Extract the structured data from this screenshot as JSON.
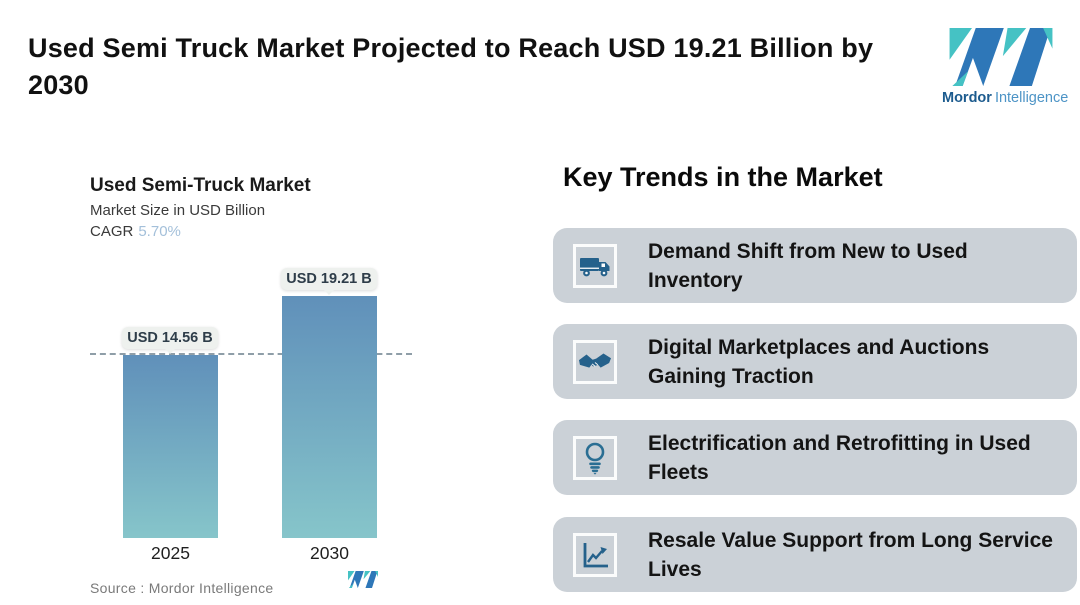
{
  "header": {
    "title": "Used Semi Truck Market Projected to Reach USD 19.21 Billion by 2030",
    "brand": {
      "name_bold": "Mordor",
      "name_light": "Intelligence"
    }
  },
  "chart": {
    "title": "Used Semi-Truck Market",
    "subtitle": "Market Size in USD Billion",
    "cagr_label": "CAGR",
    "cagr_value": "5.70%",
    "source_label": "Source :  Mordor Intelligence"
  },
  "chart_data": {
    "type": "bar",
    "categories": [
      "2025",
      "2030"
    ],
    "values": [
      14.56,
      19.21
    ],
    "bar_labels": [
      "USD 14.56 B",
      "USD 19.21 B"
    ],
    "title": "Used Semi-Truck Market",
    "xlabel": "",
    "ylabel": "Market Size in USD Billion",
    "ylim": [
      0,
      19.21
    ],
    "reference_line": 14.56,
    "cagr": "5.70%",
    "grid": false,
    "legend": "none",
    "bar_gradient_top": "#6090ba",
    "bar_gradient_bottom": "#86c5ca"
  },
  "trends": {
    "heading": "Key Trends in the Market",
    "cards": [
      {
        "icon": "truck-icon",
        "text": "Demand Shift from New to Used Inventory"
      },
      {
        "icon": "handshake-icon",
        "text": "Digital Marketplaces and Auctions Gaining Traction"
      },
      {
        "icon": "lightbulb-icon",
        "text": "Electrification and Retrofitting in Used Fleets"
      },
      {
        "icon": "chart-icon",
        "text": "Resale Value Support from Long Service Lives"
      }
    ]
  },
  "colors": {
    "accent_teal": "#45c2c4",
    "accent_blue": "#2e77b8",
    "card_bg": "#cbd1d7",
    "icon_blue": "#25618b",
    "cagr_value_color": "#a4c0da",
    "dashed_line": "#8f9ea8",
    "tooltip_bg": "#eef1ee"
  }
}
